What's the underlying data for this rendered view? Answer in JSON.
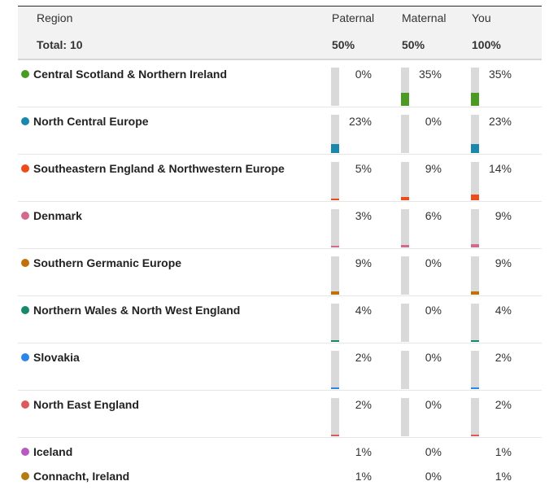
{
  "header": {
    "region_label": "Region",
    "total": "Total: 10",
    "columns": [
      {
        "label": "Paternal",
        "value": "50%"
      },
      {
        "label": "Maternal",
        "value": "50%"
      },
      {
        "label": "You",
        "value": "100%"
      }
    ]
  },
  "rows": [
    {
      "name": "Central Scotland & Northern Ireland",
      "color": "#4a9a24",
      "values": [
        "0%",
        "35%",
        "35%"
      ],
      "fractions": [
        0,
        0.35,
        0.35
      ]
    },
    {
      "name": "North Central Europe",
      "color": "#1a88aa",
      "values": [
        "23%",
        "0%",
        "23%"
      ],
      "fractions": [
        0.23,
        0,
        0.23
      ]
    },
    {
      "name": "Southeastern England & Northwestern Europe",
      "color": "#ee4a1a",
      "values": [
        "5%",
        "9%",
        "14%"
      ],
      "fractions": [
        0.05,
        0.09,
        0.14
      ]
    },
    {
      "name": "Denmark",
      "color": "#d26a90",
      "values": [
        "3%",
        "6%",
        "9%"
      ],
      "fractions": [
        0.03,
        0.06,
        0.09
      ]
    },
    {
      "name": "Southern Germanic Europe",
      "color": "#c2700a",
      "values": [
        "9%",
        "0%",
        "9%"
      ],
      "fractions": [
        0.09,
        0,
        0.09
      ]
    },
    {
      "name": "Northern Wales & North West England",
      "color": "#17896a",
      "values": [
        "4%",
        "0%",
        "4%"
      ],
      "fractions": [
        0.04,
        0,
        0.04
      ]
    },
    {
      "name": "Slovakia",
      "color": "#2c86e6",
      "values": [
        "2%",
        "0%",
        "2%"
      ],
      "fractions": [
        0.02,
        0,
        0.02
      ]
    },
    {
      "name": "North East England",
      "color": "#de5a5a",
      "values": [
        "2%",
        "0%",
        "2%"
      ],
      "fractions": [
        0.02,
        0,
        0.02
      ]
    },
    {
      "name": "Iceland",
      "color": "#b65cc0",
      "values": [
        "1%",
        "0%",
        "1%"
      ],
      "fractions": [
        0.01,
        0,
        0.01
      ]
    },
    {
      "name": "Connacht, Ireland",
      "color": "#b57a12",
      "values": [
        "1%",
        "0%",
        "1%"
      ],
      "fractions": [
        0.01,
        0,
        0.01
      ]
    }
  ]
}
